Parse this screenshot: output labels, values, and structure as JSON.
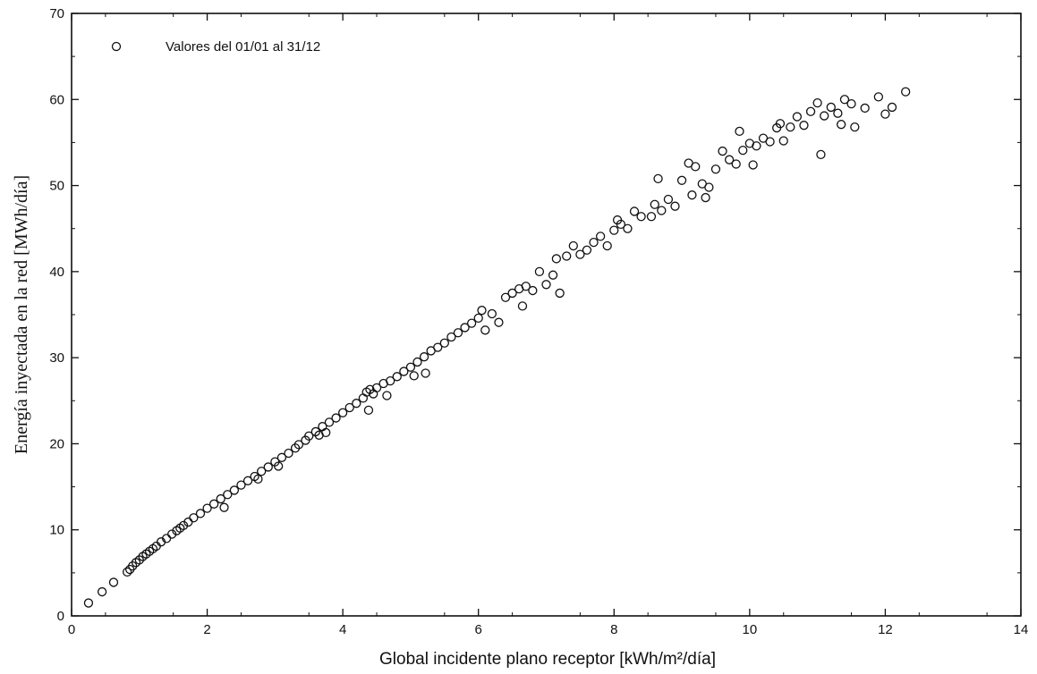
{
  "chart_data": {
    "type": "scatter",
    "xlabel": "Global incidente plano receptor [kWh/m²/día]",
    "ylabel": "Energía inyectada en la red [MWh/día]",
    "xlim": [
      0,
      14
    ],
    "ylim": [
      0,
      70
    ],
    "xticks": [
      0,
      2,
      4,
      6,
      8,
      10,
      12,
      14
    ],
    "yticks": [
      0,
      10,
      20,
      30,
      40,
      50,
      60,
      70
    ],
    "grid": false,
    "legend_position": "top-left",
    "marker": "open-circle",
    "series": [
      {
        "name": "Valores del 01/01 al 31/12",
        "points": [
          [
            0.25,
            1.5
          ],
          [
            0.45,
            2.8
          ],
          [
            0.62,
            3.9
          ],
          [
            0.82,
            5.1
          ],
          [
            0.86,
            5.4
          ],
          [
            0.9,
            5.8
          ],
          [
            0.95,
            6.2
          ],
          [
            1.0,
            6.5
          ],
          [
            1.05,
            6.9
          ],
          [
            1.1,
            7.2
          ],
          [
            1.15,
            7.5
          ],
          [
            1.2,
            7.8
          ],
          [
            1.25,
            8.1
          ],
          [
            1.32,
            8.6
          ],
          [
            1.4,
            9.0
          ],
          [
            1.48,
            9.5
          ],
          [
            1.55,
            9.9
          ],
          [
            1.6,
            10.2
          ],
          [
            1.65,
            10.5
          ],
          [
            1.72,
            10.9
          ],
          [
            1.8,
            11.4
          ],
          [
            1.9,
            11.9
          ],
          [
            2.0,
            12.5
          ],
          [
            2.1,
            13.0
          ],
          [
            2.2,
            13.6
          ],
          [
            2.25,
            12.6
          ],
          [
            2.3,
            14.1
          ],
          [
            2.4,
            14.6
          ],
          [
            2.5,
            15.2
          ],
          [
            2.6,
            15.7
          ],
          [
            2.7,
            16.2
          ],
          [
            2.75,
            15.9
          ],
          [
            2.8,
            16.8
          ],
          [
            2.9,
            17.3
          ],
          [
            3.0,
            17.9
          ],
          [
            3.05,
            17.4
          ],
          [
            3.1,
            18.4
          ],
          [
            3.2,
            18.9
          ],
          [
            3.3,
            19.5
          ],
          [
            3.35,
            19.9
          ],
          [
            3.45,
            20.4
          ],
          [
            3.5,
            20.9
          ],
          [
            3.6,
            21.4
          ],
          [
            3.65,
            21.0
          ],
          [
            3.7,
            22.0
          ],
          [
            3.75,
            21.3
          ],
          [
            3.8,
            22.5
          ],
          [
            3.9,
            23.0
          ],
          [
            4.0,
            23.6
          ],
          [
            4.1,
            24.2
          ],
          [
            4.2,
            24.7
          ],
          [
            4.3,
            25.3
          ],
          [
            4.35,
            26.0
          ],
          [
            4.4,
            26.3
          ],
          [
            4.45,
            25.8
          ],
          [
            4.5,
            26.5
          ],
          [
            4.38,
            23.9
          ],
          [
            4.6,
            27.0
          ],
          [
            4.65,
            25.6
          ],
          [
            4.7,
            27.3
          ],
          [
            4.8,
            27.8
          ],
          [
            4.9,
            28.4
          ],
          [
            5.0,
            28.9
          ],
          [
            5.05,
            27.9
          ],
          [
            5.1,
            29.5
          ],
          [
            5.2,
            30.1
          ],
          [
            5.22,
            28.2
          ],
          [
            5.3,
            30.8
          ],
          [
            5.4,
            31.2
          ],
          [
            5.5,
            31.7
          ],
          [
            5.6,
            32.4
          ],
          [
            5.7,
            32.9
          ],
          [
            5.8,
            33.5
          ],
          [
            5.9,
            34.0
          ],
          [
            6.0,
            34.6
          ],
          [
            6.05,
            35.5
          ],
          [
            6.1,
            33.2
          ],
          [
            6.2,
            35.1
          ],
          [
            6.3,
            34.1
          ],
          [
            6.4,
            37.0
          ],
          [
            6.5,
            37.5
          ],
          [
            6.6,
            38.0
          ],
          [
            6.65,
            36.0
          ],
          [
            6.7,
            38.3
          ],
          [
            6.8,
            37.8
          ],
          [
            6.9,
            40.0
          ],
          [
            7.0,
            38.5
          ],
          [
            7.1,
            39.6
          ],
          [
            7.15,
            41.5
          ],
          [
            7.2,
            37.5
          ],
          [
            7.3,
            41.8
          ],
          [
            7.4,
            43.0
          ],
          [
            7.5,
            42.0
          ],
          [
            7.6,
            42.5
          ],
          [
            7.7,
            43.4
          ],
          [
            7.8,
            44.1
          ],
          [
            7.9,
            43.0
          ],
          [
            8.0,
            44.8
          ],
          [
            8.05,
            46.0
          ],
          [
            8.1,
            45.5
          ],
          [
            8.2,
            45.0
          ],
          [
            8.3,
            47.0
          ],
          [
            8.4,
            46.4
          ],
          [
            8.55,
            46.4
          ],
          [
            8.6,
            47.8
          ],
          [
            8.65,
            50.8
          ],
          [
            8.7,
            47.1
          ],
          [
            8.8,
            48.4
          ],
          [
            8.9,
            47.6
          ],
          [
            9.0,
            50.6
          ],
          [
            9.1,
            52.6
          ],
          [
            9.15,
            48.9
          ],
          [
            9.2,
            52.2
          ],
          [
            9.3,
            50.2
          ],
          [
            9.35,
            48.6
          ],
          [
            9.4,
            49.8
          ],
          [
            9.5,
            51.9
          ],
          [
            9.6,
            54.0
          ],
          [
            9.7,
            53.0
          ],
          [
            9.8,
            52.5
          ],
          [
            9.85,
            56.3
          ],
          [
            9.9,
            54.1
          ],
          [
            10.0,
            54.9
          ],
          [
            10.05,
            52.4
          ],
          [
            10.1,
            54.6
          ],
          [
            10.2,
            55.5
          ],
          [
            10.3,
            55.1
          ],
          [
            10.4,
            56.7
          ],
          [
            10.45,
            57.2
          ],
          [
            10.5,
            55.2
          ],
          [
            10.6,
            56.8
          ],
          [
            10.7,
            58.0
          ],
          [
            10.8,
            57.0
          ],
          [
            10.9,
            58.6
          ],
          [
            11.0,
            59.6
          ],
          [
            11.05,
            53.6
          ],
          [
            11.1,
            58.1
          ],
          [
            11.2,
            59.1
          ],
          [
            11.3,
            58.4
          ],
          [
            11.35,
            57.1
          ],
          [
            11.4,
            60.0
          ],
          [
            11.5,
            59.5
          ],
          [
            11.55,
            56.8
          ],
          [
            11.7,
            59.0
          ],
          [
            11.9,
            60.3
          ],
          [
            12.0,
            58.3
          ],
          [
            12.1,
            59.1
          ],
          [
            12.3,
            60.9
          ]
        ]
      }
    ]
  }
}
